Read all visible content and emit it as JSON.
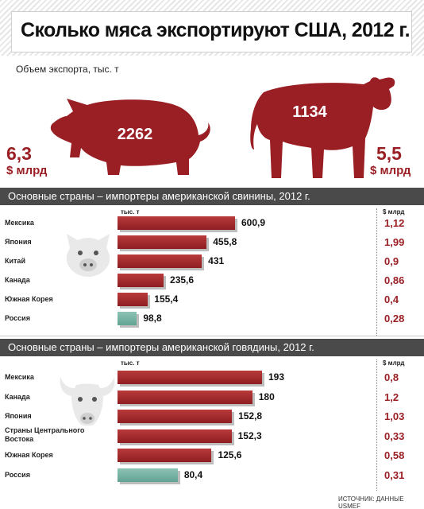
{
  "title": "Сколько мяса экспортируют США, 2012 г.",
  "subtitle": "Объем экспорта, тыс. т",
  "pork": {
    "volume": "2262",
    "money_value": "6,3",
    "money_unit": "$ млрд"
  },
  "beef": {
    "volume": "1134",
    "money_value": "5,5",
    "money_unit": "$ млрд"
  },
  "pork_section": {
    "heading": "Основные страны – импортеры американской свинины, 2012 г.",
    "col_tons": "тыс. т",
    "col_usd": "$ млрд"
  },
  "beef_section": {
    "heading": "Основные страны – импортеры американской говядины, 2012 г.",
    "col_tons": "тыс. т",
    "col_usd": "$ млрд"
  },
  "source": "ИСТОЧНИК: ДАННЫЕ USMEF",
  "colors": {
    "bar_red": "#9a1f24",
    "bar_teal": "#6aa898",
    "money_text": "#9a1f24",
    "section_bg": "#4a4a4a"
  },
  "chart_data": [
    {
      "type": "bar",
      "title": "Основные страны – импортеры американской свинины, 2012 г.",
      "categories": [
        "Мексика",
        "Япония",
        "Китай",
        "Канада",
        "Южная Корея",
        "Россия"
      ],
      "values": [
        600.9,
        455.8,
        431,
        235.6,
        155.4,
        98.8
      ],
      "labels": [
        "600,9",
        "455,8",
        "431",
        "235,6",
        "155,4",
        "98,8"
      ],
      "usd_values": [
        1.12,
        1.99,
        0.9,
        0.86,
        0.4,
        0.28
      ],
      "usd_labels": [
        "1,12",
        "1,99",
        "0,9",
        "0,86",
        "0,4",
        "0,28"
      ],
      "bar_colors": [
        "red",
        "red",
        "red",
        "red",
        "red",
        "teal"
      ],
      "xlabel": "тыс. т",
      "ylabel": "",
      "secondary_label": "$ млрд",
      "orientation": "horizontal"
    },
    {
      "type": "bar",
      "title": "Основные страны – импортеры американской говядины, 2012 г.",
      "categories": [
        "Мексика",
        "Канада",
        "Япония",
        "Страны Центрального Востока",
        "Южная Корея",
        "Россия"
      ],
      "values": [
        193,
        180,
        152.8,
        152.3,
        125.6,
        80.4
      ],
      "labels": [
        "193",
        "180",
        "152,8",
        "152,3",
        "125,6",
        "80,4"
      ],
      "usd_values": [
        0.8,
        1.2,
        1.03,
        0.33,
        0.58,
        0.31
      ],
      "usd_labels": [
        "0,8",
        "1,2",
        "1,03",
        "0,33",
        "0,58",
        "0,31"
      ],
      "bar_colors": [
        "red",
        "red",
        "red",
        "red",
        "red",
        "teal"
      ],
      "xlabel": "тыс. т",
      "ylabel": "",
      "secondary_label": "$ млрд",
      "orientation": "horizontal"
    }
  ]
}
